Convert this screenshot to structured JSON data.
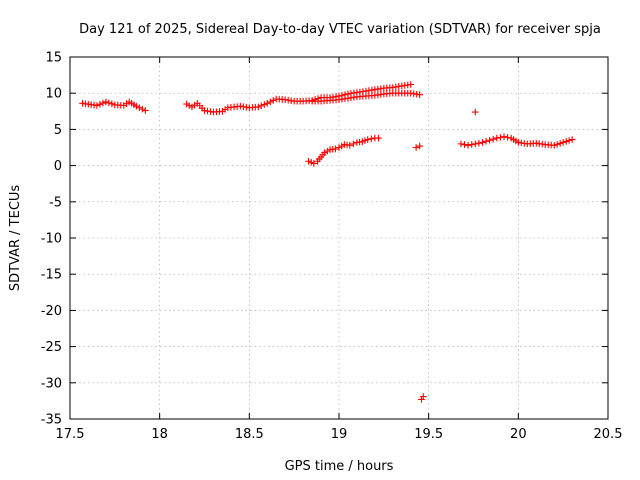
{
  "chart_data": {
    "type": "scatter",
    "title": "Day 121 of 2025, Sidereal Day-to-day VTEC variation (SDTVAR) for receiver spja",
    "xlabel": "GPS time / hours",
    "ylabel": "SDTVAR / TECUs",
    "xlim": [
      17.5,
      20.5
    ],
    "ylim": [
      -35,
      15
    ],
    "xticks": [
      "17.5",
      "18",
      "18.5",
      "19",
      "19.5",
      "20",
      "20.5"
    ],
    "yticks": [
      "15",
      "10",
      "5",
      "0",
      "-5",
      "-10",
      "-15",
      "-20",
      "-25",
      "-30",
      "-35"
    ],
    "grid": true,
    "legend": "none",
    "series": [
      {
        "name": "SDTVAR",
        "color": "#ff0000",
        "marker": "plus",
        "segments": [
          [
            [
              17.57,
              8.6
            ],
            [
              17.65,
              8.3
            ],
            [
              17.7,
              8.8
            ],
            [
              17.75,
              8.4
            ],
            [
              17.8,
              8.3
            ],
            [
              17.83,
              8.8
            ],
            [
              17.87,
              8.2
            ],
            [
              17.92,
              7.6
            ]
          ],
          [
            [
              18.15,
              8.5
            ],
            [
              18.18,
              8.1
            ],
            [
              18.21,
              8.6
            ],
            [
              18.25,
              7.6
            ],
            [
              18.3,
              7.4
            ],
            [
              18.35,
              7.5
            ],
            [
              18.38,
              8.0
            ],
            [
              18.45,
              8.2
            ],
            [
              18.5,
              8.0
            ],
            [
              18.55,
              8.1
            ],
            [
              18.6,
              8.6
            ],
            [
              18.65,
              9.2
            ],
            [
              18.7,
              9.1
            ],
            [
              18.75,
              8.9
            ],
            [
              18.8,
              8.9
            ],
            [
              18.85,
              9.0
            ],
            [
              18.9,
              9.4
            ],
            [
              18.95,
              9.4
            ],
            [
              19.0,
              9.6
            ],
            [
              19.05,
              9.9
            ],
            [
              19.1,
              10.1
            ],
            [
              19.15,
              10.3
            ],
            [
              19.2,
              10.5
            ],
            [
              19.25,
              10.7
            ],
            [
              19.3,
              10.8
            ],
            [
              19.35,
              11.0
            ],
            [
              19.4,
              11.2
            ]
          ],
          [
            [
              18.85,
              8.9
            ],
            [
              18.9,
              8.9
            ],
            [
              18.95,
              9.0
            ],
            [
              19.0,
              9.1
            ],
            [
              19.05,
              9.3
            ],
            [
              19.1,
              9.5
            ],
            [
              19.15,
              9.6
            ],
            [
              19.2,
              9.7
            ],
            [
              19.25,
              9.9
            ],
            [
              19.3,
              10.0
            ],
            [
              19.35,
              10.0
            ],
            [
              19.4,
              10.0
            ],
            [
              19.45,
              9.8
            ]
          ],
          [
            [
              18.83,
              0.6
            ],
            [
              18.86,
              0.3
            ],
            [
              18.88,
              0.6
            ],
            [
              18.9,
              1.2
            ],
            [
              18.92,
              1.8
            ],
            [
              18.95,
              2.2
            ],
            [
              18.98,
              2.3
            ],
            [
              19.0,
              2.5
            ],
            [
              19.03,
              2.9
            ],
            [
              19.06,
              2.8
            ],
            [
              19.1,
              3.2
            ],
            [
              19.13,
              3.3
            ],
            [
              19.16,
              3.6
            ],
            [
              19.2,
              3.8
            ],
            [
              19.22,
              3.8
            ]
          ],
          [
            [
              19.43,
              2.5
            ],
            [
              19.45,
              2.7
            ]
          ],
          [
            [
              19.46,
              -32.3
            ],
            [
              19.47,
              -31.9
            ]
          ],
          [
            [
              19.68,
              3.0
            ],
            [
              19.72,
              2.8
            ],
            [
              19.76,
              3.0
            ],
            [
              19.8,
              3.2
            ],
            [
              19.84,
              3.5
            ],
            [
              19.88,
              3.8
            ],
            [
              19.92,
              4.0
            ],
            [
              19.96,
              3.8
            ],
            [
              20.0,
              3.2
            ],
            [
              20.05,
              3.0
            ],
            [
              20.1,
              3.1
            ],
            [
              20.15,
              2.9
            ],
            [
              20.2,
              2.8
            ],
            [
              20.25,
              3.2
            ],
            [
              20.3,
              3.6
            ]
          ],
          [
            [
              19.76,
              7.4
            ]
          ]
        ]
      }
    ]
  }
}
